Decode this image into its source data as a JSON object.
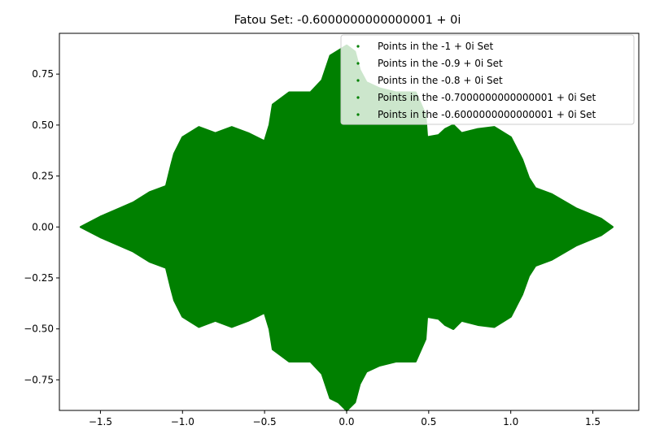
{
  "chart_data": {
    "type": "scatter",
    "title": "Fatou Set: -0.6000000000000001 + 0i",
    "xlabel": "",
    "ylabel": "",
    "xlim": [
      -1.75,
      1.78
    ],
    "ylim": [
      -0.9,
      0.95
    ],
    "x_ticks": [
      -1.5,
      -1.0,
      -0.5,
      0.0,
      0.5,
      1.0,
      1.5
    ],
    "x_tick_labels": [
      "−1.5",
      "−1.0",
      "−0.5",
      "0.0",
      "0.5",
      "1.0",
      "1.5"
    ],
    "y_ticks": [
      -0.75,
      -0.5,
      -0.25,
      0.0,
      0.25,
      0.5,
      0.75
    ],
    "y_tick_labels": [
      "−0.75",
      "−0.50",
      "−0.25",
      "0.00",
      "0.25",
      "0.50",
      "0.75"
    ],
    "grid": false,
    "legend_position": "top-right",
    "marker_color": "#008000",
    "series": [
      {
        "name": "Points in the -1 + 0i Set"
      },
      {
        "name": "Points in the -0.9 + 0i Set"
      },
      {
        "name": "Points in the -0.8 + 0i Set"
      },
      {
        "name": "Points in the -0.7000000000000001 + 0i Set"
      },
      {
        "name": "Points in the -0.6000000000000001 + 0i Set"
      }
    ],
    "filled_region_outline": [
      [
        -1.62,
        0.0
      ],
      [
        -1.5,
        0.05
      ],
      [
        -1.3,
        0.12
      ],
      [
        -1.2,
        0.17
      ],
      [
        -1.1,
        0.2
      ],
      [
        -1.07,
        0.3
      ],
      [
        -1.05,
        0.36
      ],
      [
        -1.0,
        0.44
      ],
      [
        -0.9,
        0.49
      ],
      [
        -0.8,
        0.46
      ],
      [
        -0.7,
        0.49
      ],
      [
        -0.6,
        0.46
      ],
      [
        -0.5,
        0.42
      ],
      [
        -0.47,
        0.5
      ],
      [
        -0.45,
        0.6
      ],
      [
        -0.35,
        0.66
      ],
      [
        -0.22,
        0.66
      ],
      [
        -0.15,
        0.72
      ],
      [
        -0.1,
        0.84
      ],
      [
        0.0,
        0.89
      ],
      [
        0.05,
        0.86
      ],
      [
        0.08,
        0.77
      ],
      [
        0.12,
        0.71
      ],
      [
        0.2,
        0.68
      ],
      [
        0.3,
        0.66
      ],
      [
        0.42,
        0.66
      ],
      [
        0.48,
        0.55
      ],
      [
        0.49,
        0.44
      ],
      [
        0.56,
        0.45
      ],
      [
        0.6,
        0.48
      ],
      [
        0.65,
        0.5
      ],
      [
        0.7,
        0.46
      ],
      [
        0.8,
        0.48
      ],
      [
        0.9,
        0.49
      ],
      [
        1.0,
        0.44
      ],
      [
        1.07,
        0.33
      ],
      [
        1.11,
        0.24
      ],
      [
        1.15,
        0.19
      ],
      [
        1.25,
        0.16
      ],
      [
        1.4,
        0.09
      ],
      [
        1.55,
        0.04
      ],
      [
        1.62,
        0.0
      ],
      [
        1.55,
        -0.04
      ],
      [
        1.4,
        -0.09
      ],
      [
        1.25,
        -0.16
      ],
      [
        1.15,
        -0.19
      ],
      [
        1.11,
        -0.24
      ],
      [
        1.07,
        -0.33
      ],
      [
        1.0,
        -0.44
      ],
      [
        0.9,
        -0.49
      ],
      [
        0.8,
        -0.48
      ],
      [
        0.7,
        -0.46
      ],
      [
        0.65,
        -0.5
      ],
      [
        0.6,
        -0.48
      ],
      [
        0.56,
        -0.45
      ],
      [
        0.49,
        -0.44
      ],
      [
        0.48,
        -0.55
      ],
      [
        0.42,
        -0.66
      ],
      [
        0.3,
        -0.66
      ],
      [
        0.2,
        -0.68
      ],
      [
        0.12,
        -0.71
      ],
      [
        0.08,
        -0.77
      ],
      [
        0.05,
        -0.86
      ],
      [
        0.0,
        -0.9
      ],
      [
        -0.05,
        -0.86
      ],
      [
        -0.1,
        -0.84
      ],
      [
        -0.15,
        -0.72
      ],
      [
        -0.22,
        -0.66
      ],
      [
        -0.35,
        -0.66
      ],
      [
        -0.45,
        -0.6
      ],
      [
        -0.47,
        -0.5
      ],
      [
        -0.5,
        -0.42
      ],
      [
        -0.6,
        -0.46
      ],
      [
        -0.7,
        -0.49
      ],
      [
        -0.8,
        -0.46
      ],
      [
        -0.9,
        -0.49
      ],
      [
        -1.0,
        -0.44
      ],
      [
        -1.05,
        -0.36
      ],
      [
        -1.07,
        -0.3
      ],
      [
        -1.1,
        -0.2
      ],
      [
        -1.2,
        -0.17
      ],
      [
        -1.3,
        -0.12
      ],
      [
        -1.5,
        -0.05
      ],
      [
        -1.62,
        0.0
      ]
    ]
  }
}
